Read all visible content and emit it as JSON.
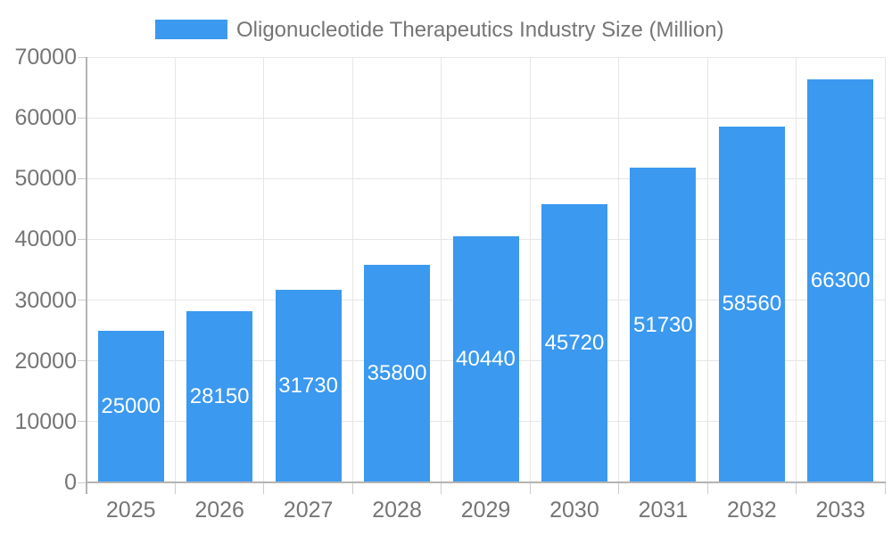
{
  "legend": {
    "label": "Oligonucleotide Therapeutics Industry Size (Million)"
  },
  "chart_data": {
    "type": "bar",
    "title": "Oligonucleotide Therapeutics Industry Size (Million)",
    "categories": [
      "2025",
      "2026",
      "2027",
      "2028",
      "2029",
      "2030",
      "2031",
      "2032",
      "2033"
    ],
    "values": [
      25000,
      28150,
      31730,
      35800,
      40440,
      45720,
      51730,
      58560,
      66300
    ],
    "series": [
      {
        "name": "Oligonucleotide Therapeutics Industry Size (Million)",
        "values": [
          25000,
          28150,
          31730,
          35800,
          40440,
          45720,
          51730,
          58560,
          66300
        ]
      }
    ],
    "xlabel": "",
    "ylabel": "",
    "ylim": [
      0,
      70000
    ],
    "yticks": [
      0,
      10000,
      20000,
      30000,
      40000,
      50000,
      60000,
      70000
    ],
    "grid": true,
    "legend_position": "top",
    "value_label_position": "inside-center",
    "colors": {
      "bar": "#3B99F0",
      "grid": "#E6E6E6",
      "axis": "#B3B3B3",
      "tick": "#CCCCCC",
      "text": "#757575",
      "value_text": "#FFFFFF",
      "background": "#FFFFFF"
    }
  }
}
